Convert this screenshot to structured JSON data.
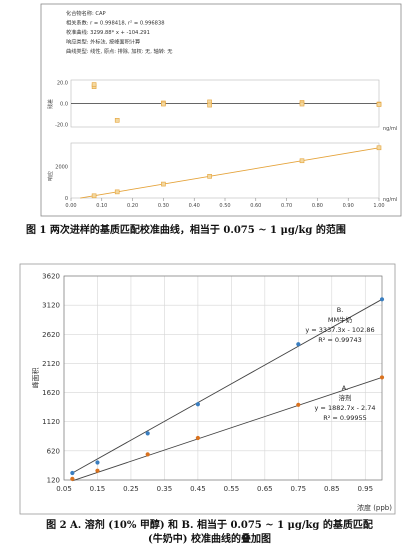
{
  "figure1": {
    "info_lines": [
      "化合物名称: CAP",
      "相关系数: r = 0.998418, r² = 0.996838",
      "校准曲线: 3299.88* x + -104.291",
      "响应类型: 外标法, 按峰面积计算",
      "曲线类型: 线性, 原点: 排除, 加权: 无, 轴转: 无"
    ],
    "residual_ylabel": "残差",
    "response_ylabel": "响应",
    "residual_yticks": [
      "20.0",
      "0.0",
      "-20.0"
    ],
    "response_yticks": [
      "2000",
      "0"
    ],
    "xticks": [
      "0.00",
      "0.10",
      "0.20",
      "0.30",
      "0.40",
      "0.50",
      "0.60",
      "0.70",
      "0.80",
      "0.90",
      "1.00"
    ],
    "unit": "ng/ml",
    "caption": "图 1  两次进样的基质匹配校准曲线，相当于 0.075 ~ 1 μg/kg 的范围"
  },
  "figure2": {
    "ylabel": "峰面积",
    "xlabel": "浓度 (ppb)",
    "yticks": [
      "120",
      "620",
      "1120",
      "1620",
      "2120",
      "2620",
      "3120",
      "3620"
    ],
    "xticks": [
      "0.05",
      "0.15",
      "0.25",
      "0.35",
      "0.45",
      "0.55",
      "0.65",
      "0.75",
      "0.85",
      "0.95"
    ],
    "labelB": [
      "B.",
      "MM牛奶",
      "y = 3337.3x - 102.86",
      "R² = 0.99743"
    ],
    "labelA": [
      "A.",
      "溶剂",
      "y = 1882.7x - 2.74",
      "R² = 0.99955"
    ],
    "caption_line1": "图 2  A. 溶剂 (10% 甲醇) 和 B. 相当于 0.075 ~ 1 μg/kg 的基质匹配",
    "caption_line2": "(牛奶中) 校准曲线的叠加图"
  },
  "chart_data": [
    {
      "type": "scatter",
      "title": "",
      "panel": "residual",
      "xlabel": "ng/ml",
      "ylabel": "残差",
      "xlim": [
        0,
        1.0
      ],
      "ylim": [
        -20,
        20
      ],
      "series": [
        {
          "x": [
            0.075,
            0.075,
            0.15,
            0.3,
            0.3,
            0.45,
            0.45,
            0.75,
            0.75,
            1.0,
            1.0
          ],
          "values": [
            16,
            18,
            -16,
            0.5,
            -0.5,
            1.5,
            -1.5,
            1,
            -0.5,
            -0.5,
            -1
          ]
        }
      ]
    },
    {
      "type": "line",
      "title": "",
      "panel": "response",
      "xlabel": "ng/ml",
      "ylabel": "响应",
      "xlim": [
        0,
        1.0
      ],
      "ylim": [
        0,
        3500
      ],
      "series": [
        {
          "x": [
            0.075,
            0.15,
            0.3,
            0.45,
            0.75,
            1.0
          ],
          "values": [
            140,
            390,
            886,
            1381,
            2370,
            3196
          ]
        }
      ]
    },
    {
      "type": "line",
      "title": "",
      "xlabel": "浓度 (ppb)",
      "ylabel": "峰面积",
      "xlim": [
        0.05,
        1.0
      ],
      "ylim": [
        120,
        3620
      ],
      "series": [
        {
          "name": "B. MM牛奶",
          "x": [
            0.075,
            0.15,
            0.3,
            0.45,
            0.75,
            1.0
          ],
          "values": [
            240,
            420,
            920,
            1420,
            2450,
            3220
          ]
        },
        {
          "name": "A. 溶剂",
          "x": [
            0.075,
            0.15,
            0.3,
            0.45,
            0.75,
            1.0
          ],
          "values": [
            140,
            280,
            560,
            840,
            1410,
            1880
          ]
        }
      ]
    }
  ]
}
